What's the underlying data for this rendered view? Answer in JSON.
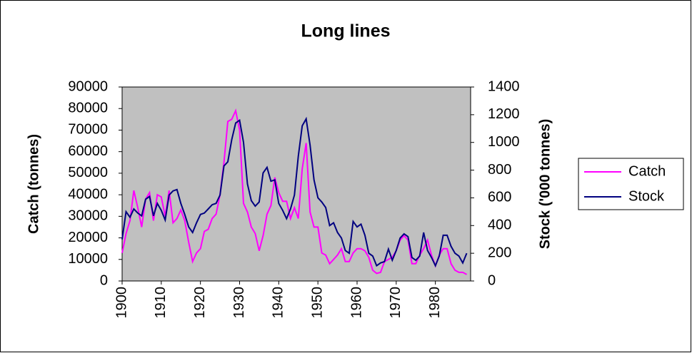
{
  "chart_data": {
    "type": "line",
    "title": "Long lines",
    "y_label": "Catch (tonnes)",
    "y2_label": "Stock ('000 tonnes)",
    "x": [
      1900,
      1901,
      1902,
      1903,
      1904,
      1905,
      1906,
      1907,
      1908,
      1909,
      1910,
      1911,
      1912,
      1913,
      1914,
      1915,
      1916,
      1917,
      1918,
      1919,
      1920,
      1921,
      1922,
      1923,
      1924,
      1925,
      1926,
      1927,
      1928,
      1929,
      1930,
      1931,
      1932,
      1933,
      1934,
      1935,
      1936,
      1937,
      1938,
      1939,
      1940,
      1941,
      1942,
      1943,
      1944,
      1945,
      1946,
      1947,
      1948,
      1949,
      1950,
      1951,
      1952,
      1953,
      1954,
      1955,
      1956,
      1957,
      1958,
      1959,
      1960,
      1961,
      1962,
      1963,
      1964,
      1965,
      1966,
      1967,
      1968,
      1969,
      1970,
      1971,
      1972,
      1973,
      1974,
      1975,
      1976,
      1977,
      1978,
      1979,
      1980,
      1981,
      1982,
      1983,
      1984,
      1985,
      1986,
      1987,
      1988
    ],
    "xlim": [
      1900,
      1989
    ],
    "xticks": [
      1900,
      1910,
      1920,
      1930,
      1940,
      1950,
      1960,
      1970,
      1980
    ],
    "ylim": [
      0,
      90000
    ],
    "yticks": [
      0,
      10000,
      20000,
      30000,
      40000,
      50000,
      60000,
      70000,
      80000,
      90000
    ],
    "y2lim": [
      0,
      1400
    ],
    "y2ticks": [
      0,
      200,
      400,
      600,
      800,
      1000,
      1200,
      1400
    ],
    "plot_background": "#c0c0c0",
    "legend": "right",
    "series": [
      {
        "name": "Catch",
        "color": "#ff00ff",
        "values": [
          13000,
          22000,
          28000,
          42000,
          34000,
          25000,
          38000,
          41000,
          28000,
          40000,
          39000,
          30000,
          42000,
          27000,
          29000,
          33000,
          28000,
          18000,
          9000,
          13000,
          15000,
          23000,
          24000,
          29000,
          31000,
          40000,
          55000,
          74000,
          75000,
          79000,
          70000,
          36000,
          32000,
          25000,
          22000,
          14000,
          21000,
          31000,
          35000,
          48000,
          41000,
          37000,
          37000,
          29000,
          34000,
          29000,
          52000,
          64000,
          32000,
          25000,
          25000,
          13000,
          12000,
          8000,
          10000,
          12000,
          15000,
          9000,
          9000,
          13000,
          15000,
          15000,
          14000,
          11000,
          5000,
          3500,
          4000,
          9000,
          10000,
          11000,
          14000,
          19000,
          21000,
          19000,
          8000,
          8000,
          12000,
          15000,
          19000,
          12000,
          7000,
          12000,
          15000,
          15000,
          8000,
          5000,
          4000,
          4000,
          3000
        ]
      },
      {
        "name": "Stock",
        "color": "#000080",
        "axis": "y2",
        "values": [
          300,
          500,
          460,
          520,
          490,
          470,
          590,
          610,
          470,
          560,
          510,
          440,
          620,
          650,
          660,
          560,
          480,
          390,
          350,
          420,
          480,
          490,
          520,
          550,
          560,
          620,
          830,
          860,
          1020,
          1140,
          1160,
          1000,
          700,
          580,
          540,
          570,
          780,
          820,
          720,
          730,
          560,
          510,
          450,
          520,
          620,
          900,
          1120,
          1170,
          980,
          730,
          600,
          570,
          530,
          400,
          420,
          350,
          310,
          220,
          200,
          430,
          390,
          410,
          330,
          200,
          180,
          110,
          130,
          140,
          230,
          150,
          220,
          310,
          340,
          320,
          170,
          150,
          180,
          350,
          220,
          170,
          110,
          180,
          330,
          330,
          250,
          200,
          180,
          130,
          200
        ]
      }
    ]
  }
}
